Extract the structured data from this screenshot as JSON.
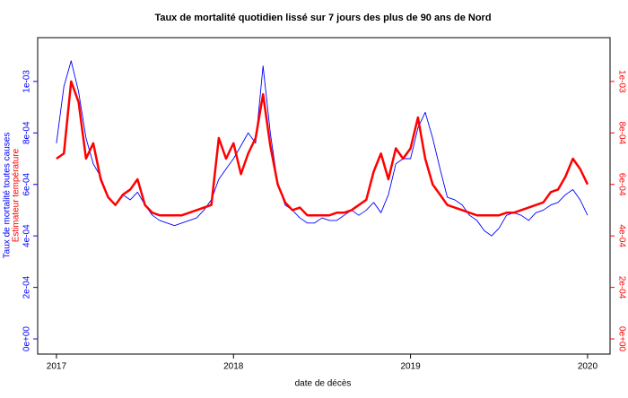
{
  "chart_data": {
    "type": "line",
    "title": "Taux de mortalité quotidien lissé sur 7 jours des plus de 90 ans de Nord",
    "x_label": "date de décès",
    "y_label": "Taux de mortalité toutes causes",
    "y2_label": "Estimateur température",
    "x": [
      2017,
      2017.042,
      2017.083,
      2017.125,
      2017.167,
      2017.208,
      2017.25,
      2017.292,
      2017.333,
      2017.375,
      2017.417,
      2017.458,
      2017.5,
      2017.542,
      2017.583,
      2017.625,
      2017.667,
      2017.708,
      2017.75,
      2017.792,
      2017.833,
      2017.875,
      2017.917,
      2017.958,
      2018,
      2018.042,
      2018.083,
      2018.125,
      2018.167,
      2018.208,
      2018.25,
      2018.292,
      2018.333,
      2018.375,
      2018.417,
      2018.458,
      2018.5,
      2018.542,
      2018.583,
      2018.625,
      2018.667,
      2018.708,
      2018.75,
      2018.792,
      2018.833,
      2018.875,
      2018.917,
      2018.958,
      2019,
      2019.042,
      2019.083,
      2019.125,
      2019.167,
      2019.208,
      2019.25,
      2019.292,
      2019.333,
      2019.375,
      2019.417,
      2019.458,
      2019.5,
      2019.542,
      2019.583,
      2019.625,
      2019.667,
      2019.708,
      2019.75,
      2019.792,
      2019.833,
      2019.875,
      2019.917,
      2019.958,
      2020
    ],
    "series": [
      {
        "name": "Taux de mortalité toutes causes",
        "color": "#0000ff",
        "values": [
          0.00076,
          0.00098,
          0.00108,
          0.00096,
          0.00078,
          0.00068,
          0.00063,
          0.00055,
          0.00052,
          0.00056,
          0.00054,
          0.00057,
          0.00052,
          0.00048,
          0.00046,
          0.00045,
          0.00044,
          0.00045,
          0.00046,
          0.00047,
          0.0005,
          0.00054,
          0.00062,
          0.00066,
          0.0007,
          0.00075,
          0.0008,
          0.00076,
          0.00106,
          0.0008,
          0.0006,
          0.00052,
          0.0005,
          0.00047,
          0.00045,
          0.00045,
          0.00047,
          0.00046,
          0.00046,
          0.00048,
          0.0005,
          0.00048,
          0.0005,
          0.00053,
          0.00049,
          0.00056,
          0.00068,
          0.0007,
          0.0007,
          0.00082,
          0.00088,
          0.00078,
          0.00066,
          0.00055,
          0.00054,
          0.00052,
          0.00048,
          0.00046,
          0.00042,
          0.0004,
          0.00043,
          0.00048,
          0.00049,
          0.00048,
          0.00046,
          0.00049,
          0.0005,
          0.00052,
          0.00053,
          0.00056,
          0.00058,
          0.00054,
          0.00048
        ]
      },
      {
        "name": "Estimateur température",
        "color": "#ff0000",
        "axis": "y2",
        "values": [
          0.0007,
          0.00072,
          0.001,
          0.00092,
          0.0007,
          0.00076,
          0.00062,
          0.00055,
          0.00052,
          0.00056,
          0.00058,
          0.00062,
          0.00052,
          0.00049,
          0.00048,
          0.00048,
          0.00048,
          0.00048,
          0.00049,
          0.0005,
          0.00051,
          0.00052,
          0.00078,
          0.0007,
          0.00076,
          0.00064,
          0.00072,
          0.00078,
          0.00095,
          0.00075,
          0.0006,
          0.00053,
          0.0005,
          0.00051,
          0.00048,
          0.00048,
          0.00048,
          0.00048,
          0.00049,
          0.00049,
          0.0005,
          0.00052,
          0.00054,
          0.00065,
          0.00072,
          0.00062,
          0.00074,
          0.0007,
          0.00074,
          0.00086,
          0.0007,
          0.0006,
          0.00056,
          0.00052,
          0.00051,
          0.0005,
          0.00049,
          0.00048,
          0.00048,
          0.00048,
          0.00048,
          0.00049,
          0.00049,
          0.0005,
          0.00051,
          0.00052,
          0.00053,
          0.00057,
          0.00058,
          0.00063,
          0.0007,
          0.00066,
          0.0006
        ]
      }
    ],
    "xlim": [
      2016.894,
      2020.127
    ],
    "xticks": [
      2017,
      2018,
      2019,
      2020
    ],
    "ylim": [
      -5.9e-05,
      0.00117
    ],
    "yticks": [
      {
        "value": 0,
        "label": "0e+00"
      },
      {
        "value": 0.0002,
        "label": "2e-04"
      },
      {
        "value": 0.0004,
        "label": "4e-04"
      },
      {
        "value": 0.0006,
        "label": "6e-04"
      },
      {
        "value": 0.0008,
        "label": "8e-04"
      },
      {
        "value": 0.001,
        "label": "1e-03"
      }
    ],
    "y2lim": [
      -5.9e-05,
      0.00117
    ],
    "y2ticks": [
      {
        "value": 0,
        "label": "0e+00"
      },
      {
        "value": 0.0002,
        "label": "2e-04"
      },
      {
        "value": 0.0004,
        "label": "4e-04"
      },
      {
        "value": 0.0006,
        "label": "6e-04"
      },
      {
        "value": 0.0008,
        "label": "8e-04"
      },
      {
        "value": 0.001,
        "label": "1e-03"
      }
    ]
  }
}
